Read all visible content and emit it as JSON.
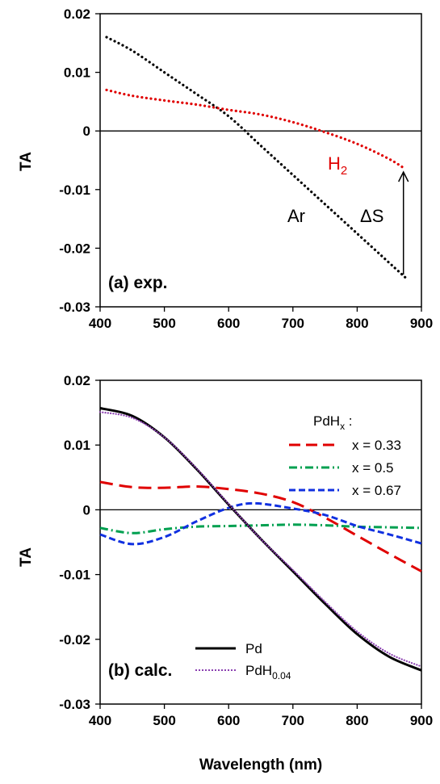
{
  "chart_data": [
    {
      "type": "line",
      "panel_label": "(a) exp.",
      "xlabel": "",
      "ylabel": "TA",
      "xlim": [
        400,
        900
      ],
      "ylim": [
        -0.03,
        0.02
      ],
      "xticks": [
        "400",
        "500",
        "600",
        "700",
        "800",
        "900"
      ],
      "yticks": [
        "0.02",
        "0.01",
        "0",
        "-0.01",
        "-0.02",
        "-0.03"
      ],
      "grid": false,
      "series": [
        {
          "name": "Ar",
          "color": "#000000",
          "style": "dotted",
          "x": [
            410,
            450,
            500,
            550,
            600,
            650,
            700,
            750,
            800,
            850,
            875
          ],
          "y": [
            0.016,
            0.0137,
            0.01,
            0.0063,
            0.0025,
            -0.0025,
            -0.0075,
            -0.0125,
            -0.0175,
            -0.0225,
            -0.025
          ]
        },
        {
          "name": "H",
          "name_sub": "2",
          "color": "#e00000",
          "style": "dotted",
          "x": [
            410,
            450,
            500,
            550,
            600,
            650,
            700,
            750,
            800,
            850,
            875
          ],
          "y": [
            0.007,
            0.006,
            0.0052,
            0.0045,
            0.0036,
            0.0028,
            0.0015,
            -0.0002,
            -0.0022,
            -0.0048,
            -0.0065
          ]
        }
      ],
      "annotations": [
        {
          "text": "ΔS",
          "arrow_x": 872,
          "arrow_from": -0.0245,
          "arrow_to": -0.007
        }
      ]
    },
    {
      "type": "line",
      "panel_label": "(b) calc.",
      "xlabel": "Wavelength (nm)",
      "ylabel": "TA",
      "xlim": [
        400,
        900
      ],
      "ylim": [
        -0.03,
        0.02
      ],
      "xticks": [
        "400",
        "500",
        "600",
        "700",
        "800",
        "900"
      ],
      "yticks": [
        "0.02",
        "0.01",
        "0",
        "-0.01",
        "-0.02",
        "-0.03"
      ],
      "grid": false,
      "legend_title": "PdH",
      "legend_title_sub": "x",
      "legend_title_suffix": " :",
      "series": [
        {
          "name": "x = 0.33",
          "color": "#e00000",
          "style": "long-dash",
          "x": [
            400,
            450,
            500,
            550,
            600,
            650,
            700,
            750,
            800,
            850,
            900
          ],
          "y": [
            0.0043,
            0.0035,
            0.0034,
            0.0036,
            0.0032,
            0.0025,
            0.0012,
            -0.0012,
            -0.004,
            -0.0068,
            -0.0095
          ]
        },
        {
          "name": "x = 0.5",
          "color": "#00a050",
          "style": "dash-dot",
          "x": [
            400,
            450,
            500,
            550,
            600,
            650,
            700,
            750,
            800,
            850,
            900
          ],
          "y": [
            -0.0028,
            -0.0036,
            -0.003,
            -0.0026,
            -0.0025,
            -0.0024,
            -0.0023,
            -0.0024,
            -0.0026,
            -0.0027,
            -0.0028
          ]
        },
        {
          "name": "x = 0.67",
          "color": "#1030e0",
          "style": "dashed",
          "x": [
            400,
            450,
            500,
            550,
            600,
            640,
            700,
            750,
            800,
            850,
            900
          ],
          "y": [
            -0.0038,
            -0.0053,
            -0.0042,
            -0.0018,
            0.0003,
            0.001,
            0.0002,
            -0.0008,
            -0.0025,
            -0.0038,
            -0.0052
          ]
        },
        {
          "name": "Pd",
          "color": "#000000",
          "style": "solid",
          "x": [
            400,
            450,
            500,
            550,
            600,
            650,
            700,
            750,
            800,
            850,
            900
          ],
          "y": [
            0.0157,
            0.0145,
            0.0112,
            0.0063,
            0.0008,
            -0.0045,
            -0.0095,
            -0.0145,
            -0.0192,
            -0.0227,
            -0.0248
          ]
        },
        {
          "name": "PdH",
          "name_sub": "0.04",
          "color": "#8a3fb0",
          "style": "dotted",
          "x": [
            400,
            450,
            500,
            550,
            600,
            650,
            700,
            750,
            800,
            850,
            900
          ],
          "y": [
            0.0151,
            0.0142,
            0.0112,
            0.0064,
            0.0009,
            -0.0045,
            -0.0093,
            -0.0142,
            -0.0188,
            -0.0222,
            -0.0242
          ]
        }
      ]
    }
  ]
}
